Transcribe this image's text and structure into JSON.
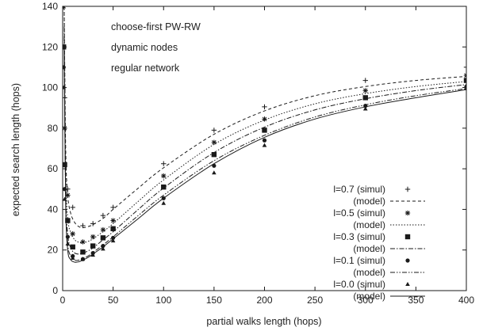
{
  "chart_data": {
    "type": "line",
    "xlabel": "partial walks length (hops)",
    "ylabel": "expected search length (hops)",
    "xlim": [
      0,
      400
    ],
    "ylim": [
      0,
      140
    ],
    "x_ticks": [
      0,
      50,
      100,
      150,
      200,
      250,
      300,
      350,
      400
    ],
    "y_ticks": [
      0,
      20,
      40,
      60,
      80,
      100,
      120,
      140
    ],
    "grid": false,
    "legend_position": "bottom-right",
    "annotations": [
      "choose-first PW-RW",
      "dynamic nodes",
      "regular network"
    ],
    "x": [
      1,
      2,
      5,
      10,
      20,
      30,
      40,
      50,
      100,
      150,
      200,
      300,
      400
    ],
    "series": [
      {
        "name": "l=0.7",
        "sim_label": "l=0.7 (simul)",
        "model_label": "(model)",
        "marker": "plus",
        "dash": "4,3",
        "sim": [
          140,
          95,
          50,
          41,
          32,
          33,
          37,
          41,
          62.5,
          79,
          90.5,
          103.5,
          110
        ],
        "model_x": [
          1.5,
          3,
          5,
          8,
          12,
          16,
          20,
          25,
          30,
          40,
          50,
          75,
          100,
          150,
          200,
          250,
          300,
          350,
          400
        ],
        "model": [
          140,
          70,
          47,
          38,
          33.5,
          31.5,
          31,
          31.5,
          32.5,
          35.5,
          40,
          50.5,
          60.5,
          77,
          88.5,
          96,
          100.5,
          103.5,
          105.5
        ]
      },
      {
        "name": "l=0.5",
        "sim_label": "l=0.5 (simul)",
        "model_label": "(model)",
        "marker": "star",
        "dash": "1.5,2",
        "sim": [
          140,
          80,
          47,
          28,
          24,
          26.5,
          30,
          34.5,
          56.5,
          73,
          84.5,
          98.5,
          106
        ],
        "model_x": [
          1.5,
          3,
          5,
          8,
          12,
          16,
          20,
          25,
          30,
          40,
          50,
          75,
          100,
          150,
          200,
          250,
          300,
          350,
          400
        ],
        "model": [
          140,
          60,
          36,
          28.5,
          25,
          23.8,
          23.5,
          24.2,
          25.5,
          29,
          33,
          44,
          54.5,
          72,
          84,
          92,
          97,
          100.5,
          103
        ]
      },
      {
        "name": "l=0.3",
        "sim_label": "l=0.3 (simul)",
        "model_label": "(model)",
        "marker": "square",
        "dash": "6,2,1.5,2",
        "sim": [
          120,
          62,
          34.5,
          21.5,
          19,
          22,
          26,
          30.5,
          51,
          67,
          79,
          95,
          103.5
        ],
        "model_x": [
          1.5,
          3,
          5,
          8,
          12,
          16,
          20,
          25,
          30,
          40,
          50,
          75,
          100,
          150,
          200,
          250,
          300,
          350,
          400
        ],
        "model": [
          130,
          50,
          28,
          21,
          18.5,
          18,
          18.5,
          19.5,
          21,
          25,
          29,
          40,
          50.5,
          68,
          80.5,
          89,
          94.5,
          98.5,
          101.5
        ]
      },
      {
        "name": "l=0.1",
        "sim_label": "l=0.1 (simul)",
        "model_label": "(model)",
        "marker": "circle",
        "dash": "6,2,1.5,2,1.5,2",
        "sim": [
          110,
          50,
          26.5,
          17,
          15.5,
          18.5,
          22,
          26,
          45.5,
          61.5,
          74,
          91,
          100.5
        ],
        "model_x": [
          1.5,
          3,
          5,
          8,
          12,
          16,
          20,
          25,
          30,
          40,
          50,
          75,
          100,
          150,
          200,
          250,
          300,
          350,
          400
        ],
        "model": [
          125,
          45,
          23,
          17,
          15,
          15,
          15.8,
          17,
          18.8,
          22.5,
          26.5,
          37,
          47,
          64,
          76.5,
          85.5,
          91.5,
          96,
          99.5
        ]
      },
      {
        "name": "l=0.0",
        "sim_label": "l=0.0 (simul)",
        "model_label": "(model)",
        "marker": "triangle",
        "dash": "",
        "sim": [
          100,
          45,
          23,
          16,
          15.5,
          17.5,
          20.5,
          24.5,
          43,
          58,
          71.5,
          89.5,
          99.5
        ],
        "model_x": [
          1.5,
          3,
          5,
          8,
          12,
          16,
          20,
          25,
          30,
          40,
          50,
          75,
          100,
          150,
          200,
          250,
          300,
          350,
          400
        ],
        "model": [
          120,
          42,
          20,
          15.2,
          14,
          14.2,
          15,
          16.3,
          18,
          21.5,
          25.5,
          35.5,
          45.5,
          62.5,
          75.5,
          84.5,
          90.5,
          95,
          99
        ]
      }
    ]
  }
}
